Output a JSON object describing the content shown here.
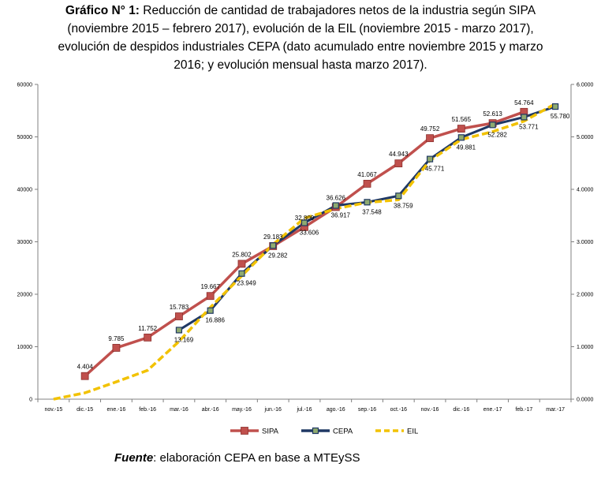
{
  "title": {
    "prefix": "Gráfico N° 1:",
    "line1_rest": " Reducción de cantidad de trabajadores netos de la industria según SIPA",
    "line2": "(noviembre 2015 – febrero 2017), evolución de la EIL (noviembre 2015 -  marzo 2017),",
    "line3": "evolución de despidos industriales CEPA (dato acumulado entre noviembre 2015 y marzo",
    "line4": "2016; y evolución mensual hasta marzo 2017)."
  },
  "source": {
    "label": "Fuente",
    "text": ": elaboración CEPA en base a MTEySS"
  },
  "chart_data": {
    "type": "line",
    "categories": [
      "nov.-15",
      "dic.-15",
      "ene.-16",
      "feb.-16",
      "mar.-16",
      "abr.-16",
      "may.-16",
      "jun.-16",
      "jul.-16",
      "ago.-16",
      "sep.-16",
      "oct.-16",
      "nov.-16",
      "dic.-16",
      "ene.-17",
      "feb.-17",
      "mar.-17"
    ],
    "ylim": [
      0,
      60000
    ],
    "yticks": [
      0,
      10000,
      20000,
      30000,
      40000,
      50000,
      60000
    ],
    "ytick_labels": [
      "0",
      "10000",
      "20000",
      "30000",
      "40000",
      "50000",
      "60000"
    ],
    "y2lim": [
      0,
      6
    ],
    "y2ticks": [
      0,
      1,
      2,
      3,
      4,
      5,
      6
    ],
    "y2tick_labels": [
      "0.0000",
      "1.0000",
      "2.0000",
      "3.0000",
      "4.0000",
      "5.0000",
      "6.0000"
    ],
    "legend_position": "bottom",
    "grid": false,
    "series": [
      {
        "name": "SIPA",
        "color": "#c0504d",
        "marker": "square",
        "values": [
          null,
          4404,
          9785,
          11752,
          15783,
          19667,
          25802,
          29183,
          32809,
          36626,
          41067,
          44943,
          49752,
          51565,
          52613,
          54764,
          null
        ],
        "labels": [
          null,
          "4.404",
          "9.785",
          "11.752",
          "15.783",
          "19.667",
          "25.802",
          "29.183",
          "32.809",
          "36.626",
          "41.067",
          "44.943",
          "49.752",
          "51.565",
          "52.613",
          "54.764",
          null
        ]
      },
      {
        "name": "CEPA",
        "color": "#1f3864",
        "marker": "square",
        "values": [
          null,
          null,
          null,
          null,
          13169,
          16886,
          23949,
          29282,
          33606,
          36917,
          37548,
          38759,
          45771,
          49881,
          52282,
          53771,
          55780
        ],
        "labels": [
          null,
          null,
          null,
          null,
          "13.169",
          "16.886",
          "23.949",
          "29.282",
          "33.606",
          "36.917",
          "37.548",
          "38.759",
          "45.771",
          "49.881",
          "52.282",
          "53.771",
          "55.780"
        ]
      },
      {
        "name": "EIL",
        "color": "#f2c200",
        "marker": "none",
        "values": [
          0.0,
          0.12,
          0.33,
          0.55,
          1.1,
          1.75,
          2.35,
          2.95,
          3.45,
          3.63,
          3.75,
          3.8,
          4.55,
          4.95,
          5.1,
          5.3,
          5.63
        ]
      }
    ]
  }
}
